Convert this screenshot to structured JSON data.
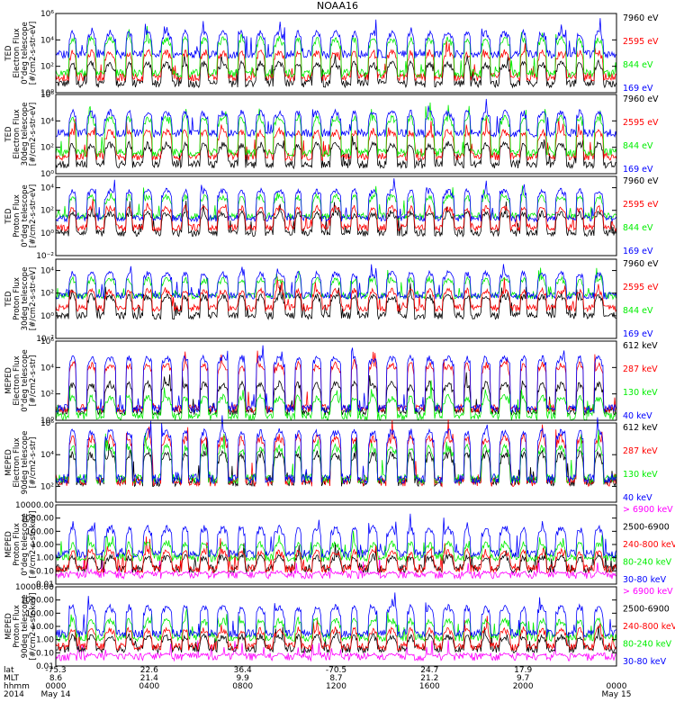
{
  "title": "NOAA16",
  "colors": {
    "blue": "#0000ff",
    "red": "#ff0000",
    "green": "#00ee00",
    "black": "#000000",
    "magenta": "#ff00ff"
  },
  "chart_data": [
    {
      "type": "line",
      "ylabel_lines": [
        "TED",
        "Electron Flux",
        "0°deg telescope",
        "[#/cm2-s-str-eV]"
      ],
      "y_scale": "log",
      "ylim": [
        1,
        1000000
      ],
      "yticks": [
        1,
        100,
        10000,
        1000000
      ],
      "ytick_labels": [
        "10⁰",
        "10²",
        "10⁴",
        "10⁶"
      ],
      "legend_position": "right",
      "series": [
        {
          "name": "7960 eV",
          "color": "#000000",
          "base": 5,
          "peak": 300
        },
        {
          "name": "2595 eV",
          "color": "#ff0000",
          "base": 15,
          "peak": 2000
        },
        {
          "name": "844 eV",
          "color": "#00ee00",
          "base": 30,
          "peak": 20000
        },
        {
          "name": "169 eV",
          "color": "#0000ff",
          "base": 800,
          "peak": 60000
        }
      ]
    },
    {
      "type": "line",
      "ylabel_lines": [
        "TED",
        "Electron Flux",
        "30deg telescope",
        "[#/cm2-s-str-eV]"
      ],
      "y_scale": "log",
      "ylim": [
        1,
        1000000
      ],
      "yticks": [
        1,
        100,
        10000,
        1000000
      ],
      "ytick_labels": [
        "10⁰",
        "10²",
        "10⁴",
        "10⁶"
      ],
      "legend_position": "right",
      "series": [
        {
          "name": "7960 eV",
          "color": "#000000",
          "base": 5,
          "peak": 300
        },
        {
          "name": "2595 eV",
          "color": "#ff0000",
          "base": 20,
          "peak": 3000
        },
        {
          "name": "844 eV",
          "color": "#00ee00",
          "base": 40,
          "peak": 30000
        },
        {
          "name": "169 eV",
          "color": "#0000ff",
          "base": 1200,
          "peak": 80000
        }
      ]
    },
    {
      "type": "line",
      "ylabel_lines": [
        "TED",
        "Proton Flux",
        "0°deg telescope",
        "[#/cm2-s-str-eV]"
      ],
      "y_scale": "log",
      "ylim": [
        0.01,
        100000
      ],
      "yticks": [
        0.01,
        1,
        100,
        10000
      ],
      "ytick_labels": [
        "10⁻²",
        "10⁰",
        "10²",
        "10⁴"
      ],
      "legend_position": "right",
      "series": [
        {
          "name": "7960 eV",
          "color": "#000000",
          "base": 1,
          "peak": 100
        },
        {
          "name": "2595 eV",
          "color": "#ff0000",
          "base": 3,
          "peak": 300
        },
        {
          "name": "844 eV",
          "color": "#00ee00",
          "base": 30,
          "peak": 3000
        },
        {
          "name": "169 eV",
          "color": "#0000ff",
          "base": 20,
          "peak": 10000
        }
      ]
    },
    {
      "type": "line",
      "ylabel_lines": [
        "TED",
        "Proton Flux",
        "30deg telescope",
        "[#/cm2-s-str-eV]"
      ],
      "y_scale": "log",
      "ylim": [
        0.01,
        100000
      ],
      "yticks": [
        0.01,
        1,
        100,
        10000
      ],
      "ytick_labels": [
        "10⁻²",
        "10⁰",
        "10²",
        "10⁴"
      ],
      "legend_position": "right",
      "series": [
        {
          "name": "7960 eV",
          "color": "#000000",
          "base": 1,
          "peak": 100
        },
        {
          "name": "2595 eV",
          "color": "#ff0000",
          "base": 5,
          "peak": 300
        },
        {
          "name": "844 eV",
          "color": "#00ee00",
          "base": 60,
          "peak": 3000
        },
        {
          "name": "169 eV",
          "color": "#0000ff",
          "base": 60,
          "peak": 10000
        }
      ]
    },
    {
      "type": "line",
      "ylabel_lines": [
        "MEPED",
        "Electron Flux",
        "0°deg telescope",
        "[#/cm2-s-str]"
      ],
      "y_scale": "log",
      "ylim": [
        1,
        1000000
      ],
      "yticks": [
        1,
        100,
        10000,
        1000000
      ],
      "ytick_labels": [
        "10⁰",
        "10²",
        "10⁴",
        "10⁶"
      ],
      "legend_position": "right",
      "series": [
        {
          "name": "612 keV",
          "color": "#000000",
          "base": 5,
          "peak": 1000
        },
        {
          "name": "287 keV",
          "color": "#ff0000",
          "base": 8,
          "peak": 30000
        },
        {
          "name": "130 keV",
          "color": "#00ee00",
          "base": 2,
          "peak": 100
        },
        {
          "name": "40 keV",
          "color": "#0000ff",
          "base": 8,
          "peak": 100000
        }
      ]
    },
    {
      "type": "line",
      "ylabel_lines": [
        "MEPED",
        "Electron Flux",
        "90deg telescope",
        "[#/cm2-s-str]"
      ],
      "y_scale": "log",
      "ylim": [
        10,
        1000000
      ],
      "yticks": [
        100,
        10000,
        1000000
      ],
      "ytick_labels": [
        "10²",
        "10⁴",
        "10⁶"
      ],
      "legend_position": "right",
      "series": [
        {
          "name": "612 keV",
          "color": "#000000",
          "base": 200,
          "peak": 20000
        },
        {
          "name": "287 keV",
          "color": "#ff0000",
          "base": 200,
          "peak": 200000
        },
        {
          "name": "130 keV",
          "color": "#00ee00",
          "base": 300,
          "peak": 50000
        },
        {
          "name": "40 keV",
          "color": "#0000ff",
          "base": 300,
          "peak": 500000
        }
      ]
    },
    {
      "type": "line",
      "ylabel_lines": [
        "MEPED",
        "Proton Flux",
        "0°deg telescope",
        "[#/cm2-s-str-keV]"
      ],
      "y_scale": "log",
      "ylim": [
        0.01,
        10000
      ],
      "yticks": [
        0.01,
        0.1,
        1,
        10,
        100,
        1000,
        10000
      ],
      "ytick_labels": [
        "0.01",
        "0.10",
        "1.00",
        "10.00",
        "100.00",
        "1000.00",
        "10000.00"
      ],
      "legend_position": "right",
      "series": [
        {
          "name": "> 6900 keV",
          "color": "#ff00ff",
          "base": 0.05,
          "peak": 0.1
        },
        {
          "name": "2500-6900",
          "color": "#000000",
          "base": 0.15,
          "peak": 2
        },
        {
          "name": "240-800 keV",
          "color": "#ff0000",
          "base": 0.15,
          "peak": 5
        },
        {
          "name": "80-240 keV",
          "color": "#00ee00",
          "base": 1,
          "peak": 20
        },
        {
          "name": "30-80 keV",
          "color": "#0000ff",
          "base": 2,
          "peak": 300
        }
      ]
    },
    {
      "type": "line",
      "ylabel_lines": [
        "MEPED",
        "Proton Flux",
        "90deg telescope",
        "[#/cm2-s-str-keV]"
      ],
      "y_scale": "log",
      "ylim": [
        0.01,
        10000
      ],
      "yticks": [
        0.01,
        0.1,
        1,
        10,
        100,
        1000,
        10000
      ],
      "ytick_labels": [
        "0.01",
        "0.10",
        "1.00",
        "10.00",
        "100.00",
        "1000.00",
        "10000.00"
      ],
      "legend_position": "right",
      "series": [
        {
          "name": "> 6900 keV",
          "color": "#ff00ff",
          "base": 0.05,
          "peak": 0.1
        },
        {
          "name": "2500-6900",
          "color": "#000000",
          "base": 0.2,
          "peak": 3
        },
        {
          "name": "240-800 keV",
          "color": "#ff0000",
          "base": 0.3,
          "peak": 10
        },
        {
          "name": "80-240 keV",
          "color": "#00ee00",
          "base": 1.5,
          "peak": 50
        },
        {
          "name": "30-80 keV",
          "color": "#0000ff",
          "base": 3,
          "peak": 500
        }
      ]
    }
  ],
  "x_axis": {
    "row_labels": [
      "lat",
      "MLT",
      "hhmm",
      "2014"
    ],
    "ticks": [
      {
        "lat": "-75.3",
        "mlt": "8.6",
        "time": "0000",
        "date": "May 14"
      },
      {
        "lat": "22.6",
        "mlt": "21.4",
        "time": "0400",
        "date": ""
      },
      {
        "lat": "36.4",
        "mlt": "9.9",
        "time": "0800",
        "date": ""
      },
      {
        "lat": "-70.5",
        "mlt": "8.7",
        "time": "1200",
        "date": ""
      },
      {
        "lat": "24.7",
        "mlt": "21.2",
        "time": "1600",
        "date": ""
      },
      {
        "lat": "17.9",
        "mlt": "9.7",
        "time": "2000",
        "date": ""
      },
      {
        "lat": "",
        "mlt": "",
        "time": "0000",
        "date": "May 15"
      }
    ]
  }
}
